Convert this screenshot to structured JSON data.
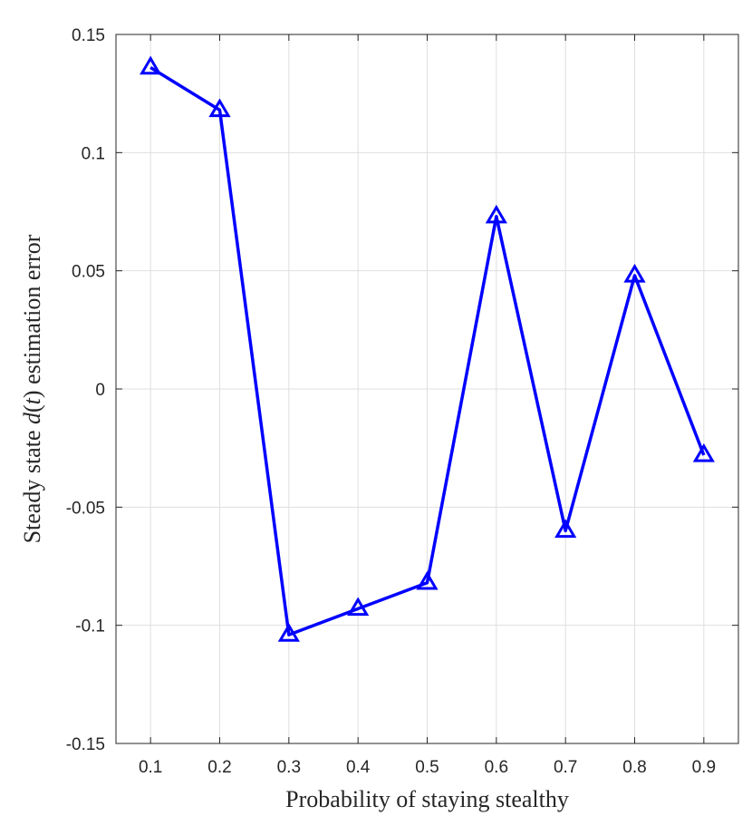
{
  "chart_data": {
    "type": "line",
    "xlabel": "Probability of staying stealthy",
    "ylabel_parts": [
      "Steady state ",
      "d",
      "(",
      "t",
      ")",
      " estimation error"
    ],
    "x": [
      0.1,
      0.2,
      0.3,
      0.4,
      0.5,
      0.6,
      0.7,
      0.8,
      0.9
    ],
    "series": [
      {
        "values": [
          0.136,
          0.118,
          -0.104,
          -0.093,
          -0.082,
          0.073,
          -0.06,
          0.048,
          -0.028
        ],
        "color": "#0000ff",
        "marker": "triangle"
      }
    ],
    "xticks": [
      "0.1",
      "0.2",
      "0.3",
      "0.4",
      "0.5",
      "0.6",
      "0.7",
      "0.8",
      "0.9"
    ],
    "yticks": [
      "0.15",
      "0.1",
      "0.05",
      "0",
      "-0.05",
      "-0.1",
      "-0.15"
    ],
    "xlim": [
      0.05,
      0.95
    ],
    "ylim": [
      -0.15,
      0.15
    ],
    "grid": true
  }
}
